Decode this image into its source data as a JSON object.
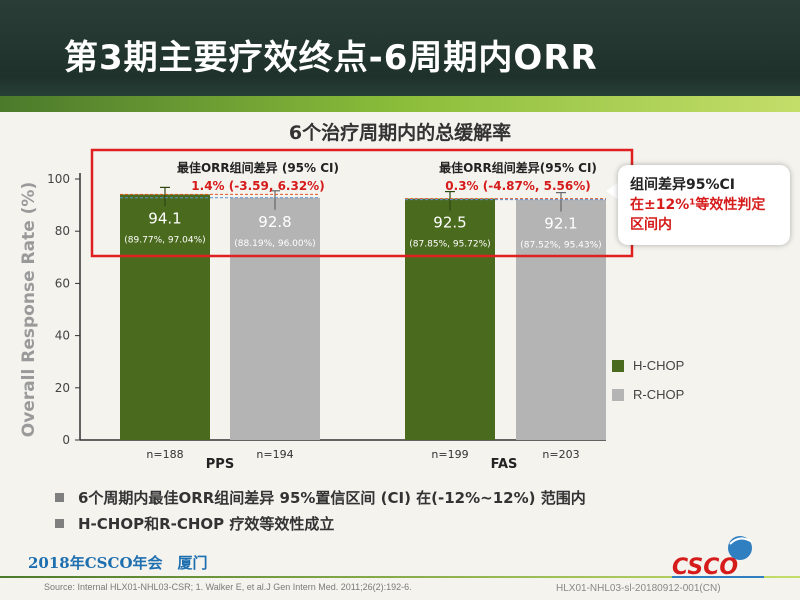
{
  "slide": {
    "title": "第3期主要疗效终点-6周期内ORR",
    "subtitle": "6个治疗周期内的总缓解率",
    "callout": {
      "line1": "组间差异95%CI",
      "line2": "在±12%¹等效性判定",
      "line3": "区间内"
    },
    "bullets": [
      "6个周期内最佳ORR组间差异 95%置信区间 (CI) 在(-12%~12%) 范围内",
      "H-CHOP和R-CHOP 疗效等效性成立"
    ],
    "conference": "2018年CSCO年会　厦门",
    "source": "Source:  Internal HLX01-NHL03-CSR; 1. Walker E, et al.J Gen Intern Med. 2011;26(2):192-6.",
    "code": "HLX01-NHL03-sl-20180912-001(CN)",
    "logo_text": "CSCO"
  },
  "colors": {
    "h_chop": "#4a6b1e",
    "r_chop": "#b4b4b4",
    "highlight_box": "#e02020",
    "diff_text": "#d61b1b"
  },
  "chart_data": {
    "type": "bar",
    "ylabel": "Overall Response Rate (%)",
    "ylim": [
      0,
      100
    ],
    "yticks": [
      0,
      20,
      40,
      60,
      80,
      100
    ],
    "groups": [
      {
        "name": "PPS",
        "diff_label": "最佳ORR组间差异 (95% CI)",
        "diff_value": "1.4% (-3.59, 6.32%)",
        "bars": [
          {
            "series": "H-CHOP",
            "value": 94.1,
            "ci": "(89.77%, 97.04%)",
            "n": "n=188"
          },
          {
            "series": "R-CHOP",
            "value": 92.8,
            "ci": "(88.19%, 96.00%)",
            "n": "n=194"
          }
        ]
      },
      {
        "name": "FAS",
        "diff_label": "最佳ORR组间差异(95% CI)",
        "diff_value": "0.3% (-4.87%, 5.56%)",
        "bars": [
          {
            "series": "H-CHOP",
            "value": 92.5,
            "ci": "(87.85%, 95.72%)",
            "n": "n=199"
          },
          {
            "series": "R-CHOP",
            "value": 92.1,
            "ci": "(87.52%, 95.43%)",
            "n": "n=203"
          }
        ]
      }
    ],
    "legend": [
      {
        "name": "H-CHOP",
        "color": "#4a6b1e"
      },
      {
        "name": "R-CHOP",
        "color": "#b4b4b4"
      }
    ],
    "legend_position": "right"
  }
}
